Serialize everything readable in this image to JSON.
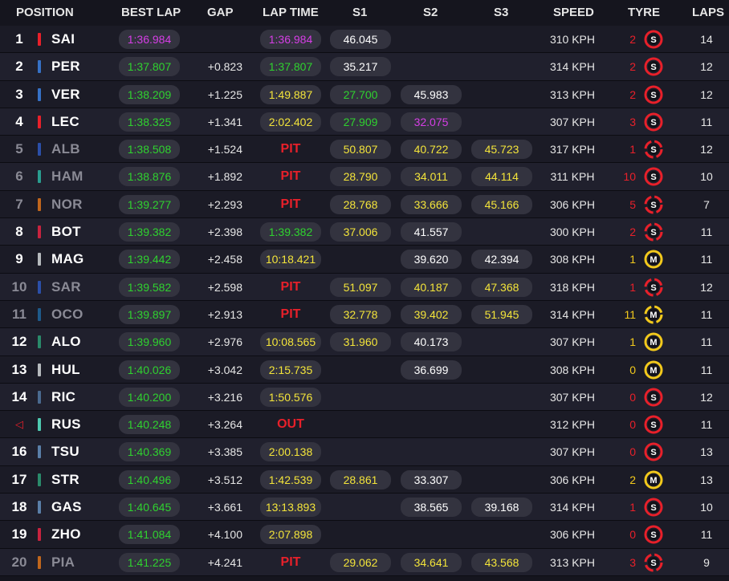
{
  "colors": {
    "purple": "#d63ee6",
    "green": "#2fd22f",
    "yellow": "#f3e43a",
    "white": "#ffffff",
    "red": "#e8202a",
    "soft": "#e8202a",
    "medium": "#f2c91c",
    "age_red": "#e8202a",
    "age_yellow": "#f2c91c"
  },
  "headers": {
    "position": "POSITION",
    "best_lap": "BEST LAP",
    "gap": "GAP",
    "lap_time": "LAP TIME",
    "s1": "S1",
    "s2": "S2",
    "s3": "S3",
    "speed": "SPEED",
    "tyre": "TYRE",
    "laps": "LAPS"
  },
  "rows": [
    {
      "pos": "1",
      "driver": "SAI",
      "team_color": "#e8202a",
      "best": "1:36.984",
      "best_c": "purple",
      "gap": "",
      "lap": "1:36.984",
      "lap_c": "purple",
      "pit": "",
      "s1": "46.045",
      "s1_c": "white",
      "s2": "",
      "s2_c": "white",
      "s3": "",
      "s3_c": "white",
      "speed": "310 KPH",
      "tyre_age": "2",
      "age_c": "red",
      "tyre": "S",
      "tyre_c": "soft",
      "tyre_used": false,
      "laps": "14",
      "dim": false
    },
    {
      "pos": "2",
      "driver": "PER",
      "team_color": "#3671c6",
      "best": "1:37.807",
      "best_c": "green",
      "gap": "+0.823",
      "lap": "1:37.807",
      "lap_c": "green",
      "pit": "",
      "s1": "35.217",
      "s1_c": "white",
      "s2": "",
      "s2_c": "white",
      "s3": "",
      "s3_c": "white",
      "speed": "314 KPH",
      "tyre_age": "2",
      "age_c": "red",
      "tyre": "S",
      "tyre_c": "soft",
      "tyre_used": false,
      "laps": "12",
      "dim": false
    },
    {
      "pos": "3",
      "driver": "VER",
      "team_color": "#3671c6",
      "best": "1:38.209",
      "best_c": "green",
      "gap": "+1.225",
      "lap": "1:49.887",
      "lap_c": "yellow",
      "pit": "",
      "s1": "27.700",
      "s1_c": "green",
      "s2": "45.983",
      "s2_c": "white",
      "s3": "",
      "s3_c": "white",
      "speed": "313 KPH",
      "tyre_age": "2",
      "age_c": "red",
      "tyre": "S",
      "tyre_c": "soft",
      "tyre_used": false,
      "laps": "12",
      "dim": false
    },
    {
      "pos": "4",
      "driver": "LEC",
      "team_color": "#e8202a",
      "best": "1:38.325",
      "best_c": "green",
      "gap": "+1.341",
      "lap": "2:02.402",
      "lap_c": "yellow",
      "pit": "",
      "s1": "27.909",
      "s1_c": "green",
      "s2": "32.075",
      "s2_c": "purple",
      "s3": "",
      "s3_c": "white",
      "speed": "307 KPH",
      "tyre_age": "3",
      "age_c": "red",
      "tyre": "S",
      "tyre_c": "soft",
      "tyre_used": false,
      "laps": "11",
      "dim": false
    },
    {
      "pos": "5",
      "driver": "ALB",
      "team_color": "#2b4fa8",
      "best": "1:38.508",
      "best_c": "green",
      "gap": "+1.524",
      "lap": "",
      "lap_c": "white",
      "pit": "PIT",
      "s1": "50.807",
      "s1_c": "yellow",
      "s2": "40.722",
      "s2_c": "yellow",
      "s3": "45.723",
      "s3_c": "yellow",
      "speed": "317 KPH",
      "tyre_age": "1",
      "age_c": "red",
      "tyre": "S",
      "tyre_c": "soft",
      "tyre_used": true,
      "laps": "12",
      "dim": true
    },
    {
      "pos": "6",
      "driver": "HAM",
      "team_color": "#2a9d8f",
      "best": "1:38.876",
      "best_c": "green",
      "gap": "+1.892",
      "lap": "",
      "lap_c": "white",
      "pit": "PIT",
      "s1": "28.790",
      "s1_c": "yellow",
      "s2": "34.011",
      "s2_c": "yellow",
      "s3": "44.114",
      "s3_c": "yellow",
      "speed": "311 KPH",
      "tyre_age": "10",
      "age_c": "red",
      "tyre": "S",
      "tyre_c": "soft",
      "tyre_used": false,
      "laps": "10",
      "dim": true
    },
    {
      "pos": "7",
      "driver": "NOR",
      "team_color": "#c0661c",
      "best": "1:39.277",
      "best_c": "green",
      "gap": "+2.293",
      "lap": "",
      "lap_c": "white",
      "pit": "PIT",
      "s1": "28.768",
      "s1_c": "yellow",
      "s2": "33.666",
      "s2_c": "yellow",
      "s3": "45.166",
      "s3_c": "yellow",
      "speed": "306 KPH",
      "tyre_age": "5",
      "age_c": "red",
      "tyre": "S",
      "tyre_c": "soft",
      "tyre_used": true,
      "laps": "7",
      "dim": true
    },
    {
      "pos": "8",
      "driver": "BOT",
      "team_color": "#c8233f",
      "best": "1:39.382",
      "best_c": "green",
      "gap": "+2.398",
      "lap": "1:39.382",
      "lap_c": "green",
      "pit": "",
      "s1": "37.006",
      "s1_c": "yellow",
      "s2": "41.557",
      "s2_c": "white",
      "s3": "",
      "s3_c": "white",
      "speed": "300 KPH",
      "tyre_age": "2",
      "age_c": "red",
      "tyre": "S",
      "tyre_c": "soft",
      "tyre_used": true,
      "laps": "11",
      "dim": false
    },
    {
      "pos": "9",
      "driver": "MAG",
      "team_color": "#b6babd",
      "best": "1:39.442",
      "best_c": "green",
      "gap": "+2.458",
      "lap": "10:18.421",
      "lap_c": "yellow",
      "pit": "",
      "s1": "",
      "s1_c": "white",
      "s2": "39.620",
      "s2_c": "white",
      "s3": "42.394",
      "s3_c": "white",
      "speed": "308 KPH",
      "tyre_age": "1",
      "age_c": "yellow",
      "tyre": "M",
      "tyre_c": "medium",
      "tyre_used": false,
      "laps": "11",
      "dim": false
    },
    {
      "pos": "10",
      "driver": "SAR",
      "team_color": "#2b4fa8",
      "best": "1:39.582",
      "best_c": "green",
      "gap": "+2.598",
      "lap": "",
      "lap_c": "white",
      "pit": "PIT",
      "s1": "51.097",
      "s1_c": "yellow",
      "s2": "40.187",
      "s2_c": "yellow",
      "s3": "47.368",
      "s3_c": "yellow",
      "speed": "318 KPH",
      "tyre_age": "1",
      "age_c": "red",
      "tyre": "S",
      "tyre_c": "soft",
      "tyre_used": true,
      "laps": "12",
      "dim": true
    },
    {
      "pos": "11",
      "driver": "OCO",
      "team_color": "#1e5a8a",
      "best": "1:39.897",
      "best_c": "green",
      "gap": "+2.913",
      "lap": "",
      "lap_c": "white",
      "pit": "PIT",
      "s1": "32.778",
      "s1_c": "yellow",
      "s2": "39.402",
      "s2_c": "yellow",
      "s3": "51.945",
      "s3_c": "yellow",
      "speed": "314 KPH",
      "tyre_age": "11",
      "age_c": "yellow",
      "tyre": "M",
      "tyre_c": "medium",
      "tyre_used": true,
      "laps": "11",
      "dim": true
    },
    {
      "pos": "12",
      "driver": "ALO",
      "team_color": "#2a8a6a",
      "best": "1:39.960",
      "best_c": "green",
      "gap": "+2.976",
      "lap": "10:08.565",
      "lap_c": "yellow",
      "pit": "",
      "s1": "31.960",
      "s1_c": "yellow",
      "s2": "40.173",
      "s2_c": "white",
      "s3": "",
      "s3_c": "white",
      "speed": "307 KPH",
      "tyre_age": "1",
      "age_c": "yellow",
      "tyre": "M",
      "tyre_c": "medium",
      "tyre_used": false,
      "laps": "11",
      "dim": false
    },
    {
      "pos": "13",
      "driver": "HUL",
      "team_color": "#b6babd",
      "best": "1:40.026",
      "best_c": "green",
      "gap": "+3.042",
      "lap": "2:15.735",
      "lap_c": "yellow",
      "pit": "",
      "s1": "",
      "s1_c": "white",
      "s2": "36.699",
      "s2_c": "white",
      "s3": "",
      "s3_c": "white",
      "speed": "308 KPH",
      "tyre_age": "0",
      "age_c": "yellow",
      "tyre": "M",
      "tyre_c": "medium",
      "tyre_used": false,
      "laps": "11",
      "dim": false
    },
    {
      "pos": "14",
      "driver": "RIC",
      "team_color": "#4a6a8f",
      "best": "1:40.200",
      "best_c": "green",
      "gap": "+3.216",
      "lap": "1:50.576",
      "lap_c": "yellow",
      "pit": "",
      "s1": "",
      "s1_c": "white",
      "s2": "",
      "s2_c": "white",
      "s3": "",
      "s3_c": "white",
      "speed": "307 KPH",
      "tyre_age": "0",
      "age_c": "red",
      "tyre": "S",
      "tyre_c": "soft",
      "tyre_used": false,
      "laps": "12",
      "dim": false
    },
    {
      "pos": "",
      "pos_icon": "◁",
      "driver": "RUS",
      "team_color": "#4ec9b0",
      "best": "1:40.248",
      "best_c": "green",
      "gap": "+3.264",
      "lap": "",
      "lap_c": "white",
      "pit": "OUT",
      "s1": "",
      "s1_c": "white",
      "s2": "",
      "s2_c": "white",
      "s3": "",
      "s3_c": "white",
      "speed": "312 KPH",
      "tyre_age": "0",
      "age_c": "red",
      "tyre": "S",
      "tyre_c": "soft",
      "tyre_used": false,
      "laps": "11",
      "dim": false
    },
    {
      "pos": "16",
      "driver": "TSU",
      "team_color": "#5a7fa8",
      "best": "1:40.369",
      "best_c": "green",
      "gap": "+3.385",
      "lap": "2:00.138",
      "lap_c": "yellow",
      "pit": "",
      "s1": "",
      "s1_c": "white",
      "s2": "",
      "s2_c": "white",
      "s3": "",
      "s3_c": "white",
      "speed": "307 KPH",
      "tyre_age": "0",
      "age_c": "red",
      "tyre": "S",
      "tyre_c": "soft",
      "tyre_used": false,
      "laps": "13",
      "dim": false
    },
    {
      "pos": "17",
      "driver": "STR",
      "team_color": "#2a8a6a",
      "best": "1:40.496",
      "best_c": "green",
      "gap": "+3.512",
      "lap": "1:42.539",
      "lap_c": "yellow",
      "pit": "",
      "s1": "28.861",
      "s1_c": "yellow",
      "s2": "33.307",
      "s2_c": "white",
      "s3": "",
      "s3_c": "white",
      "speed": "306 KPH",
      "tyre_age": "2",
      "age_c": "yellow",
      "tyre": "M",
      "tyre_c": "medium",
      "tyre_used": false,
      "laps": "13",
      "dim": false
    },
    {
      "pos": "18",
      "driver": "GAS",
      "team_color": "#5a7fa8",
      "best": "1:40.645",
      "best_c": "green",
      "gap": "+3.661",
      "lap": "13:13.893",
      "lap_c": "yellow",
      "pit": "",
      "s1": "",
      "s1_c": "white",
      "s2": "38.565",
      "s2_c": "white",
      "s3": "39.168",
      "s3_c": "white",
      "speed": "314 KPH",
      "tyre_age": "1",
      "age_c": "red",
      "tyre": "S",
      "tyre_c": "soft",
      "tyre_used": false,
      "laps": "10",
      "dim": false
    },
    {
      "pos": "19",
      "driver": "ZHO",
      "team_color": "#c8233f",
      "best": "1:41.084",
      "best_c": "green",
      "gap": "+4.100",
      "lap": "2:07.898",
      "lap_c": "yellow",
      "pit": "",
      "s1": "",
      "s1_c": "white",
      "s2": "",
      "s2_c": "white",
      "s3": "",
      "s3_c": "white",
      "speed": "306 KPH",
      "tyre_age": "0",
      "age_c": "red",
      "tyre": "S",
      "tyre_c": "soft",
      "tyre_used": false,
      "laps": "11",
      "dim": false
    },
    {
      "pos": "20",
      "driver": "PIA",
      "team_color": "#c0661c",
      "best": "1:41.225",
      "best_c": "green",
      "gap": "+4.241",
      "lap": "",
      "lap_c": "white",
      "pit": "PIT",
      "s1": "29.062",
      "s1_c": "yellow",
      "s2": "34.641",
      "s2_c": "yellow",
      "s3": "43.568",
      "s3_c": "yellow",
      "speed": "313 KPH",
      "tyre_age": "3",
      "age_c": "red",
      "tyre": "S",
      "tyre_c": "soft",
      "tyre_used": true,
      "laps": "9",
      "dim": true
    }
  ]
}
